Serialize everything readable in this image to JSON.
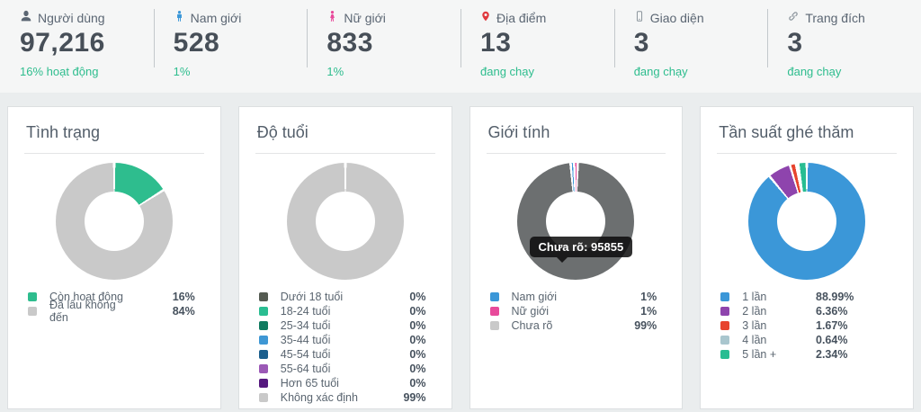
{
  "colors": {
    "accent_green": "#2ebd8e",
    "value_text": "#474f58",
    "label_text": "#5b6673",
    "card_border": "#dcdfe1",
    "topbar_bg": "#f5f6f6",
    "page_bg": "#eaedee"
  },
  "topbar": {
    "stats": [
      {
        "icon": "user-icon",
        "icon_color": "#5b6673",
        "label": "Người dùng",
        "value": "97,216",
        "sub": "16% hoạt động"
      },
      {
        "icon": "male-icon",
        "icon_color": "#3b97d8",
        "label": "Nam giới",
        "value": "528",
        "sub": "1%"
      },
      {
        "icon": "female-icon",
        "icon_color": "#e84a9b",
        "label": "Nữ giới",
        "value": "833",
        "sub": "1%"
      },
      {
        "icon": "map-marker-icon",
        "icon_color": "#e0393e",
        "label": "Địa điểm",
        "value": "13",
        "sub": "đang chạy"
      },
      {
        "icon": "mobile-icon",
        "icon_color": "#8a939b",
        "label": "Giao diện",
        "value": "3",
        "sub": "đang chạy"
      },
      {
        "icon": "link-icon",
        "icon_color": "#8a939b",
        "label": "Trang đích",
        "value": "3",
        "sub": "đang chạy"
      }
    ]
  },
  "chart_data": [
    {
      "type": "pie",
      "subtype": "donut",
      "title": "Tình trạng",
      "legend_position": "bottom",
      "slices": [
        {
          "label": "Còn hoạt động",
          "value": 16,
          "percent_label": "16%",
          "color": "#2ebd8e"
        },
        {
          "label": "Đã lâu không đến",
          "value": 84,
          "percent_label": "84%",
          "color": "#c9c9c9"
        }
      ]
    },
    {
      "type": "pie",
      "subtype": "donut",
      "title": "Độ tuổi",
      "legend_position": "bottom",
      "slices": [
        {
          "label": "Dưới 18 tuổi",
          "value": 0,
          "percent_label": "0%",
          "color": "#555b52"
        },
        {
          "label": "18-24 tuổi",
          "value": 0,
          "percent_label": "0%",
          "color": "#2abd91"
        },
        {
          "label": "25-34 tuổi",
          "value": 0,
          "percent_label": "0%",
          "color": "#0f7a5f"
        },
        {
          "label": "35-44 tuổi",
          "value": 0,
          "percent_label": "0%",
          "color": "#3e97d4"
        },
        {
          "label": "45-54 tuổi",
          "value": 0,
          "percent_label": "0%",
          "color": "#1c5f8d"
        },
        {
          "label": "55-64 tuổi",
          "value": 0,
          "percent_label": "0%",
          "color": "#9b59b6"
        },
        {
          "label": "Hơn 65 tuổi",
          "value": 0,
          "percent_label": "0%",
          "color": "#55187e"
        },
        {
          "label": "Không xác định",
          "value": 99,
          "percent_label": "99%",
          "color": "#c9c9c9"
        }
      ]
    },
    {
      "type": "pie",
      "subtype": "donut",
      "title": "Giới tính",
      "legend_position": "bottom",
      "start_angle": -5,
      "tooltip": "Chưa rõ: 95855",
      "hovered_slice": "Chưa rõ",
      "hovered_value": 95855,
      "slices": [
        {
          "label": "Nam giới",
          "value": 1,
          "percent_label": "1%",
          "color": "#3b97d8"
        },
        {
          "label": "Nữ giới",
          "value": 1,
          "percent_label": "1%",
          "color": "#e84a9b"
        },
        {
          "label": "Chưa rõ",
          "value": 99,
          "percent_label": "99%",
          "color": "#6c6f70",
          "legend_color": "#c9c9c9"
        }
      ]
    },
    {
      "type": "pie",
      "subtype": "donut",
      "title": "Tần suất ghé thăm",
      "legend_position": "bottom",
      "slices": [
        {
          "label": "1 lần",
          "value": 88.99,
          "percent_label": "88.99%",
          "color": "#3b97d8"
        },
        {
          "label": "2 lần",
          "value": 6.36,
          "percent_label": "6.36%",
          "color": "#8e44ad"
        },
        {
          "label": "3 lần",
          "value": 1.67,
          "percent_label": "1.67%",
          "color": "#e7442e"
        },
        {
          "label": "4 lần",
          "value": 0.64,
          "percent_label": "0.64%",
          "color": "#a9c6ce"
        },
        {
          "label": "5 lần +",
          "value": 2.34,
          "percent_label": "2.34%",
          "color": "#28bd92"
        }
      ]
    }
  ]
}
